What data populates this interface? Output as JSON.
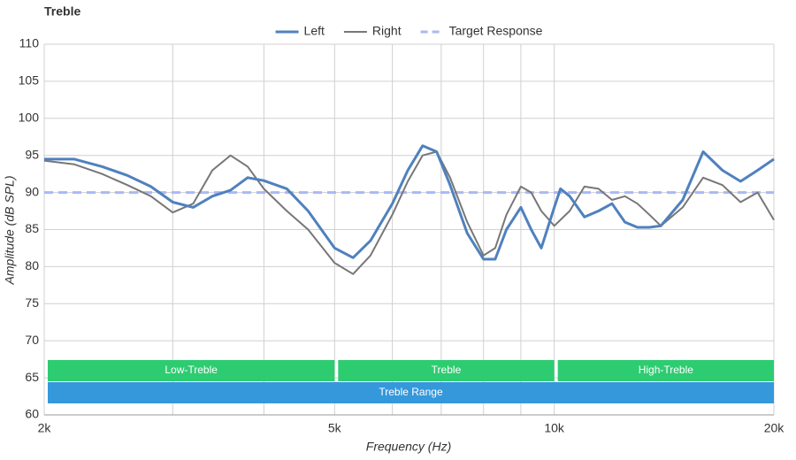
{
  "chart_data": {
    "type": "line",
    "title": "Treble",
    "xlabel": "Frequency (Hz)",
    "ylabel": "Amplitude (dB SPL)",
    "xscale": "log",
    "xlim": [
      2000,
      20000
    ],
    "ylim": [
      60,
      110
    ],
    "xticks": [
      {
        "value": 2000,
        "label": "2k"
      },
      {
        "value": 5000,
        "label": "5k"
      },
      {
        "value": 10000,
        "label": "10k"
      },
      {
        "value": 20000,
        "label": "20k"
      }
    ],
    "x_minor_grid": [
      3000,
      4000,
      6000,
      7000,
      8000,
      9000
    ],
    "yticks": [
      60,
      65,
      70,
      75,
      80,
      85,
      90,
      95,
      100,
      105,
      110
    ],
    "grid": true,
    "legend": "top",
    "series": [
      {
        "name": "Left",
        "color": "#4f81bd",
        "line_width": 3,
        "dashed": false,
        "x": [
          2000,
          2200,
          2400,
          2600,
          2800,
          3000,
          3200,
          3400,
          3600,
          3800,
          4000,
          4300,
          4600,
          5000,
          5300,
          5600,
          6000,
          6300,
          6600,
          6900,
          7200,
          7600,
          8000,
          8300,
          8600,
          9000,
          9300,
          9600,
          10000,
          10200,
          10500,
          11000,
          11500,
          12000,
          12500,
          13000,
          13500,
          14000,
          15000,
          16000,
          17000,
          18000,
          19000,
          20000
        ],
        "values": [
          94.5,
          94.5,
          93.5,
          92.3,
          90.8,
          88.7,
          88,
          89.5,
          90.3,
          92,
          91.6,
          90.5,
          87.5,
          82.5,
          81.2,
          83.5,
          88.5,
          93,
          96.3,
          95.5,
          91,
          84.5,
          81,
          81,
          85,
          88,
          85,
          82.5,
          88,
          90.5,
          89.5,
          86.7,
          87.5,
          88.5,
          86,
          85.3,
          85.3,
          85.5,
          89,
          95.5,
          93,
          91.5,
          93,
          94.5
        ]
      },
      {
        "name": "Right",
        "color": "#777777",
        "line_width": 2,
        "dashed": false,
        "x": [
          2000,
          2200,
          2400,
          2600,
          2800,
          3000,
          3200,
          3400,
          3600,
          3800,
          4000,
          4300,
          4600,
          5000,
          5300,
          5600,
          6000,
          6300,
          6600,
          6900,
          7200,
          7600,
          8000,
          8300,
          8600,
          9000,
          9300,
          9600,
          10000,
          10500,
          11000,
          11500,
          12000,
          12500,
          13000,
          13500,
          14000,
          15000,
          16000,
          17000,
          18000,
          19000,
          20000
        ],
        "values": [
          94.3,
          93.8,
          92.5,
          91,
          89.5,
          87.3,
          88.5,
          93,
          95,
          93.5,
          90.5,
          87.5,
          85,
          80.5,
          79,
          81.5,
          87,
          91.5,
          95,
          95.5,
          92,
          86,
          81.5,
          82.5,
          87,
          90.8,
          90,
          87.5,
          85.5,
          87.5,
          90.8,
          90.5,
          89,
          89.5,
          88.5,
          87,
          85.5,
          88,
          92,
          91,
          88.7,
          90,
          86.3
        ]
      },
      {
        "name": "Target Response",
        "color": "#aab8f5",
        "line_width": 3,
        "dashed": true,
        "x": [
          2000,
          20000
        ],
        "values": [
          90,
          90
        ]
      }
    ],
    "bands": [
      {
        "label": "Low-Treble",
        "range": [
          2000,
          5000
        ],
        "color": "#2ecc71"
      },
      {
        "label": "Treble",
        "range": [
          5000,
          10000
        ],
        "color": "#2ecc71"
      },
      {
        "label": "High-Treble",
        "range": [
          10000,
          20000
        ],
        "color": "#2ecc71"
      }
    ],
    "range_band": {
      "label": "Treble Range",
      "range": [
        2000,
        20000
      ],
      "color": "#3498db"
    }
  }
}
